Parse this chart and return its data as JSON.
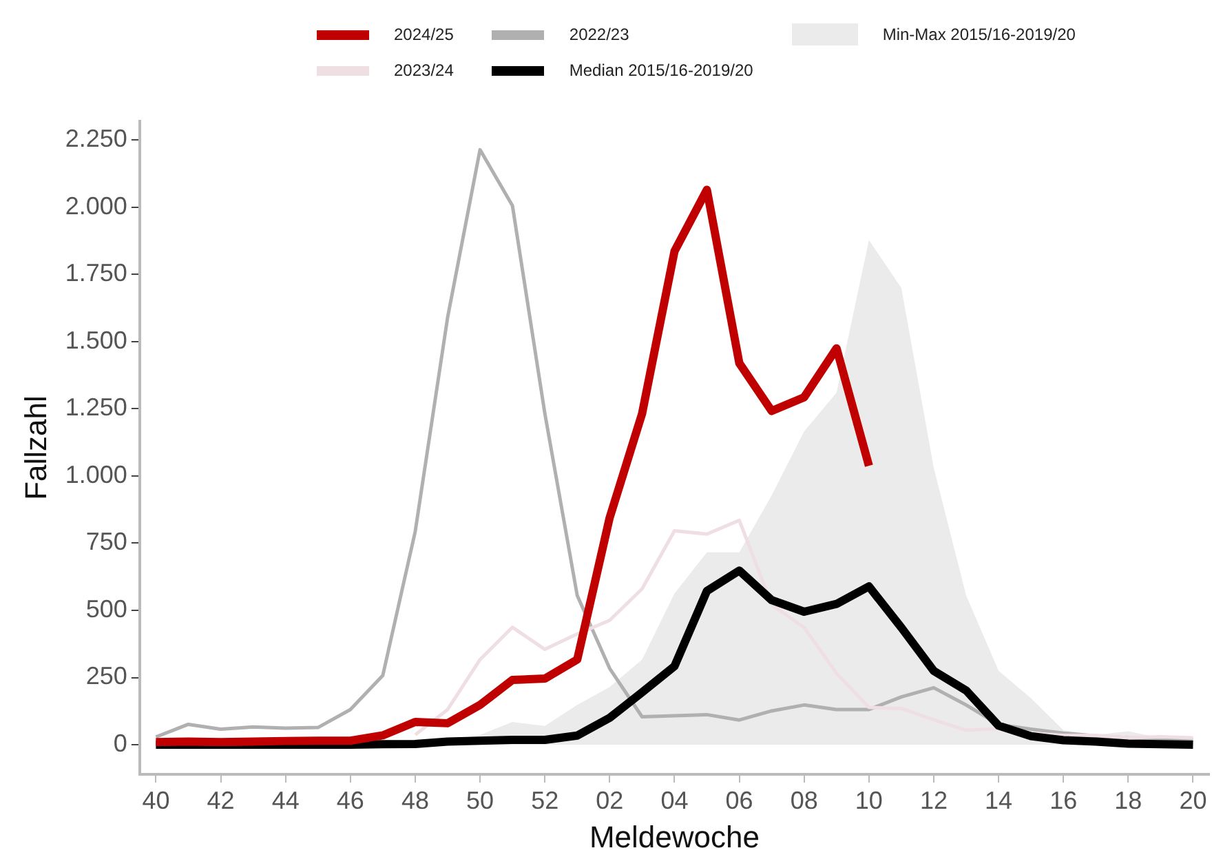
{
  "chart_data": {
    "type": "line",
    "xlabel": "Meldewoche",
    "ylabel": "Fallzahl",
    "categories": [
      "40",
      null,
      "42",
      null,
      "44",
      null,
      "46",
      null,
      "48",
      null,
      "50",
      null,
      "52",
      null,
      "02",
      null,
      "04",
      null,
      "06",
      null,
      "08",
      null,
      "10",
      null,
      "12",
      null,
      "14",
      null,
      "16",
      null,
      "18",
      null,
      "20"
    ],
    "series": [
      {
        "name": "2024/25",
        "color": "#c00000",
        "values": [
          10,
          12,
          10,
          12,
          14,
          15,
          15,
          35,
          85,
          80,
          148,
          241,
          246,
          317,
          845,
          1232,
          1836,
          2065,
          1420,
          1242,
          1293,
          1475,
          1038,
          null,
          null,
          null,
          null,
          null,
          null,
          null,
          null,
          null,
          null
        ]
      },
      {
        "name": "2023/24",
        "color": "#efdfe3",
        "values": [
          null,
          null,
          null,
          null,
          null,
          null,
          null,
          null,
          37,
          131,
          317,
          437,
          355,
          412,
          463,
          580,
          796,
          784,
          835,
          521,
          436,
          266,
          139,
          135,
          93,
          54,
          60,
          43,
          35,
          35,
          26,
          30,
          26
        ]
      },
      {
        "name": "2022/23",
        "color": "#b0b0b0",
        "values": [
          29,
          76,
          58,
          66,
          62,
          64,
          131,
          258,
          793,
          1590,
          2214,
          2006,
          1233,
          555,
          284,
          104,
          108,
          112,
          92,
          126,
          148,
          131,
          131,
          178,
          212,
          148,
          75,
          58,
          43,
          33,
          26,
          24,
          18
        ]
      },
      {
        "name": "Median 2015/16-2019/20",
        "color": "#000000",
        "values": [
          0,
          0,
          0,
          0,
          0,
          0,
          0,
          2,
          3,
          12,
          15,
          18,
          18,
          34,
          100,
          195,
          292,
          572,
          648,
          538,
          495,
          524,
          589,
          436,
          275,
          202,
          71,
          32,
          17,
          12,
          4,
          2,
          0
        ]
      },
      {
        "name": "Min-Max 2015/16-2019/20",
        "type": "area",
        "color": "#ebebeb",
        "values": [
          5,
          5,
          5,
          5,
          5,
          5,
          5,
          5,
          10,
          15,
          37,
          85,
          70,
          148,
          215,
          317,
          563,
          716,
          716,
          928,
          1166,
          1310,
          1878,
          1700,
          1030,
          555,
          275,
          173,
          54,
          37,
          50,
          25,
          15
        ]
      }
    ],
    "ylim": [
      -110,
      2320
    ],
    "yticks": [
      0,
      250,
      500,
      750,
      {
        "value": 1000,
        "label": "1.000"
      },
      {
        "value": 1250,
        "label": "1.250"
      },
      {
        "value": 1500,
        "label": "1.500"
      },
      {
        "value": 1750,
        "label": "1.750"
      },
      {
        "value": 2000,
        "label": "2.000"
      },
      {
        "value": 2250,
        "label": "2.250"
      }
    ],
    "grid": false,
    "legend": "top",
    "marker": "none",
    "line_style": "solid"
  }
}
